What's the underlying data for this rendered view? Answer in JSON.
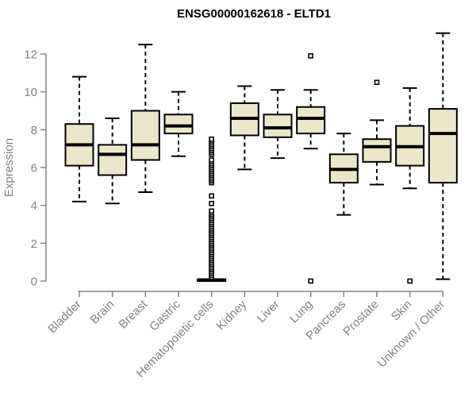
{
  "colors": {
    "background": "#ffffff",
    "box_fill": "#ECE7CB",
    "box_stroke": "#000000",
    "median": "#000000",
    "outlier_fill": "#ffffff",
    "axis": "#828282",
    "title": "#000000"
  },
  "chart_data": {
    "type": "boxplot",
    "title": "ENSG00000162618 - ELTD1",
    "xlabel": "",
    "ylabel": "Expression",
    "ylim": [
      0,
      13.2
    ],
    "yticks": [
      0,
      2,
      4,
      6,
      8,
      10,
      12
    ],
    "grid": false,
    "legend": "none",
    "categories": [
      "Bladder",
      "Brain",
      "Breast",
      "Gastric",
      "Hematopoietic cells",
      "Kidney",
      "Liver",
      "Lung",
      "Pancreas",
      "Prostate",
      "Skin",
      "Unknown / Other"
    ],
    "boxes": [
      {
        "category": "Bladder",
        "whisker_low": 4.2,
        "q1": 6.1,
        "median": 7.2,
        "q3": 8.3,
        "whisker_high": 10.8,
        "outliers": []
      },
      {
        "category": "Brain",
        "whisker_low": 4.1,
        "q1": 5.6,
        "median": 6.7,
        "q3": 7.2,
        "whisker_high": 8.6,
        "outliers": []
      },
      {
        "category": "Breast",
        "whisker_low": 4.7,
        "q1": 6.4,
        "median": 7.2,
        "q3": 9.0,
        "whisker_high": 12.5,
        "outliers": []
      },
      {
        "category": "Gastric",
        "whisker_low": 6.6,
        "q1": 7.8,
        "median": 8.2,
        "q3": 8.8,
        "whisker_high": 10.0,
        "outliers": []
      },
      {
        "category": "Hematopoietic cells",
        "whisker_low": 0,
        "q1": 0,
        "median": 0.05,
        "q3": 0.1,
        "whisker_high": 0.1,
        "outliers": [
          0.2,
          0.3,
          0.4,
          0.5,
          0.6,
          0.7,
          0.8,
          0.9,
          1.0,
          1.1,
          1.2,
          1.3,
          1.4,
          1.5,
          1.6,
          1.7,
          1.8,
          1.9,
          2.0,
          2.1,
          2.2,
          2.3,
          2.4,
          2.5,
          2.6,
          2.7,
          2.8,
          2.9,
          3.0,
          3.1,
          3.2,
          3.3,
          3.4,
          3.5,
          3.6,
          3.7,
          4.1,
          4.5,
          5.2,
          5.3,
          5.4,
          5.5,
          5.6,
          5.7,
          5.8,
          5.9,
          6.0,
          6.1,
          6.2,
          6.3,
          6.4,
          6.7,
          6.8,
          6.9,
          7.0,
          7.1,
          7.2,
          7.3,
          7.4,
          7.5
        ]
      },
      {
        "category": "Kidney",
        "whisker_low": 5.9,
        "q1": 7.7,
        "median": 8.6,
        "q3": 9.4,
        "whisker_high": 10.3,
        "outliers": []
      },
      {
        "category": "Liver",
        "whisker_low": 6.5,
        "q1": 7.6,
        "median": 8.1,
        "q3": 8.8,
        "whisker_high": 10.1,
        "outliers": []
      },
      {
        "category": "Lung",
        "whisker_low": 7.0,
        "q1": 7.8,
        "median": 8.6,
        "q3": 9.2,
        "whisker_high": 10.1,
        "outliers": [
          11.9,
          0.0
        ]
      },
      {
        "category": "Pancreas",
        "whisker_low": 3.5,
        "q1": 5.2,
        "median": 5.9,
        "q3": 6.7,
        "whisker_high": 7.8,
        "outliers": []
      },
      {
        "category": "Prostate",
        "whisker_low": 5.1,
        "q1": 6.3,
        "median": 7.1,
        "q3": 7.5,
        "whisker_high": 8.5,
        "outliers": [
          10.5
        ]
      },
      {
        "category": "Skin",
        "whisker_low": 4.9,
        "q1": 6.1,
        "median": 7.1,
        "q3": 8.2,
        "whisker_high": 10.2,
        "outliers": [
          0.0
        ]
      },
      {
        "category": "Unknown / Other",
        "whisker_low": 0.1,
        "q1": 5.2,
        "median": 7.8,
        "q3": 9.1,
        "whisker_high": 13.1,
        "outliers": []
      }
    ]
  }
}
